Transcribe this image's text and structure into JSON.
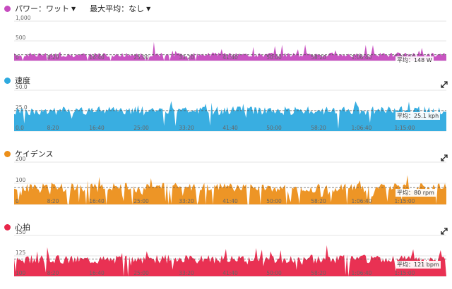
{
  "toolbar": {
    "metric_label": "パワー：ワット",
    "maxavg_label": "最大平均：なし"
  },
  "panels": [
    {
      "key": "power",
      "title": "",
      "color": "#c64bbf",
      "avg_text": "平均：148 W",
      "avg": 148,
      "yticks": [
        "1,000",
        "500",
        "0"
      ],
      "ymax": 1000
    },
    {
      "key": "speed",
      "title": "速度",
      "color": "#2eaadf",
      "avg_text": "平均：25.1 kph",
      "avg": 25.1,
      "yticks": [
        "50.0",
        "25.0",
        "0.0"
      ],
      "ymax": 50
    },
    {
      "key": "cadence",
      "title": "ケイデンス",
      "color": "#ec8f1a",
      "avg_text": "平均：80 rpm",
      "avg": 80,
      "yticks": [
        "200",
        "100",
        "0"
      ],
      "ymax": 200
    },
    {
      "key": "hr",
      "title": "心拍",
      "color": "#e8264a",
      "avg_text": "平均：121 bpm",
      "avg": 121,
      "yticks": [
        "150",
        "125",
        "100"
      ],
      "ymin": 100,
      "ymax": 150
    }
  ],
  "x_ticks": [
    "8:20",
    "16:40",
    "25:00",
    "33:20",
    "41:40",
    "50:00",
    "58:20",
    "1:06:40",
    "1:15:00"
  ],
  "colors": {
    "power": "#c64bbf",
    "speed": "#2eaadf",
    "cadence": "#ec8f1a",
    "hr": "#e8264a"
  },
  "chart_data": [
    {
      "type": "area",
      "title": "",
      "xlabel": "",
      "ylabel": "パワー：ワット",
      "ylim": [
        0,
        1000
      ],
      "x": [
        "8:20",
        "16:40",
        "25:00",
        "33:20",
        "41:40",
        "50:00",
        "58:20",
        "1:06:40",
        "1:15:00"
      ],
      "series": [
        {
          "values": [
            150,
            160,
            140,
            170,
            150,
            160,
            140,
            130,
            120
          ]
        }
      ]
    },
    {
      "type": "area",
      "title": "",
      "ylim": [
        0,
        50
      ],
      "x": [
        "8:20",
        "16:40",
        "25:00",
        "33:20",
        "41:40",
        "50:00",
        "58:20",
        "1:06:40",
        "1:15:00"
      ],
      "series": [
        {
          "name": "速度",
          "values": [
            26,
            27,
            24,
            28,
            25,
            26,
            24,
            23,
            22
          ]
        }
      ]
    },
    {
      "type": "area",
      "title": "",
      "ylim": [
        0,
        200
      ],
      "x": [
        "8:20",
        "16:40",
        "25:00",
        "33:20",
        "41:40",
        "50:00",
        "58:20",
        "1:06:40",
        "1:15:00"
      ],
      "series": [
        {
          "name": "ケイデンス",
          "values": [
            82,
            85,
            80,
            84,
            81,
            83,
            80,
            78,
            75
          ]
        }
      ]
    },
    {
      "type": "area",
      "title": "",
      "ylim": [
        100,
        150
      ],
      "x": [
        "8:20",
        "16:40",
        "25:00",
        "33:20",
        "41:40",
        "50:00",
        "58:20",
        "1:06:40",
        "1:15:00"
      ],
      "series": [
        {
          "name": "心拍",
          "values": [
            120,
            124,
            118,
            126,
            122,
            125,
            120,
            119,
            118
          ]
        }
      ]
    }
  ]
}
